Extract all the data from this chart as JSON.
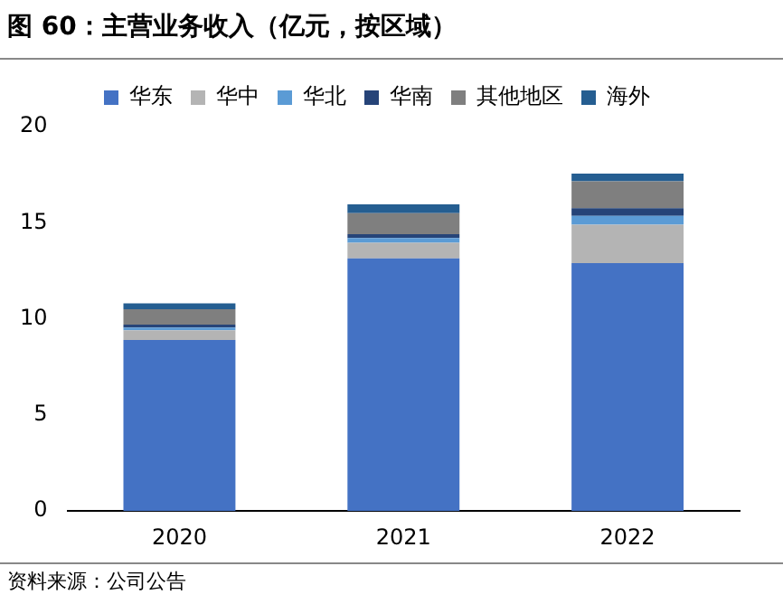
{
  "chart_data": {
    "type": "bar",
    "title": "图 60：主营业务收入（亿元，按区域）",
    "annotations": [
      "资料来源：公司公告"
    ],
    "categories": [
      "2020",
      "2021",
      "2022"
    ],
    "stacked": true,
    "legend": "top",
    "grid": false,
    "ylim": [
      0,
      20
    ],
    "yticks": [
      0,
      5,
      10,
      15,
      20
    ],
    "series": [
      {
        "name": "华东",
        "color": "#4472c4",
        "values": [
          8.9,
          13.15,
          12.9
        ]
      },
      {
        "name": "华中",
        "color": "#b4b4b4",
        "values": [
          0.5,
          0.8,
          2.0
        ]
      },
      {
        "name": "华北",
        "color": "#5b9bd5",
        "values": [
          0.15,
          0.25,
          0.45
        ]
      },
      {
        "name": "华南",
        "color": "#264478",
        "values": [
          0.15,
          0.2,
          0.4
        ]
      },
      {
        "name": "其他地区",
        "color": "#7f7f7f",
        "values": [
          0.8,
          1.1,
          1.4
        ]
      },
      {
        "name": "海外",
        "color": "#255e91",
        "values": [
          0.3,
          0.45,
          0.4
        ]
      }
    ]
  }
}
